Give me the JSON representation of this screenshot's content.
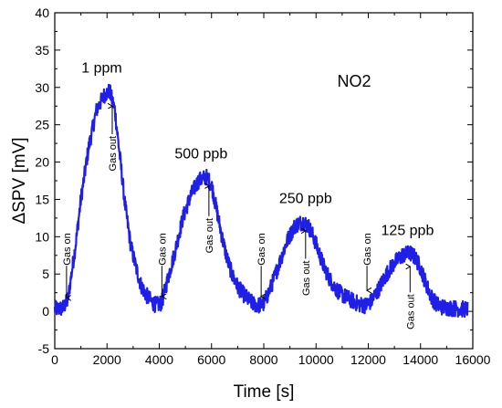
{
  "chart_data": {
    "type": "line",
    "title": "",
    "xlabel": "Time [s]",
    "ylabel": "ΔSPV [mV]",
    "xlim": [
      0,
      16000
    ],
    "ylim": [
      -5,
      40
    ],
    "x_ticks": [
      0,
      2000,
      4000,
      6000,
      8000,
      10000,
      12000,
      14000,
      16000
    ],
    "y_ticks": [
      -5,
      0,
      5,
      10,
      15,
      20,
      25,
      30,
      35,
      40
    ],
    "x_tick_labels": [
      "0",
      "2000",
      "4000",
      "6000",
      "8000",
      "10000",
      "12000",
      "14000",
      "16000"
    ],
    "y_tick_labels": [
      "-5",
      "0",
      "5",
      "10",
      "15",
      "20",
      "25",
      "30",
      "35",
      "40"
    ],
    "grid": false,
    "legend": "none",
    "line_color": "#1f1fe6",
    "series": [
      {
        "x": [
          0,
          300,
          500,
          800,
          1000,
          1300,
          1600,
          1900,
          2100,
          2300,
          2500,
          2700,
          2900,
          3100,
          3300,
          3500,
          3700,
          3900,
          4100,
          4300,
          4600,
          4900,
          5200,
          5500,
          5800,
          6000,
          6200,
          6400,
          6600,
          6800,
          7000,
          7200,
          7400,
          7600,
          7800,
          8000,
          8300,
          8600,
          8900,
          9200,
          9500,
          9700,
          9900,
          10100,
          10300,
          10500,
          10700,
          10900,
          11100,
          11300,
          11500,
          11700,
          11900,
          12100,
          12400,
          12700,
          13000,
          13300,
          13600,
          13800,
          14000,
          14200,
          14400,
          14600,
          14800,
          15000,
          15300,
          15600,
          15800
        ],
        "y": [
          0.3,
          0.4,
          1.5,
          9.0,
          15.0,
          22.0,
          27.0,
          29.0,
          29.5,
          27.0,
          20.5,
          14.0,
          9.0,
          6.0,
          3.5,
          2.2,
          1.3,
          0.8,
          1.2,
          4.0,
          8.0,
          12.5,
          15.5,
          17.5,
          18.0,
          17.0,
          13.5,
          10.0,
          7.0,
          4.8,
          3.3,
          2.4,
          1.6,
          1.0,
          0.8,
          1.0,
          3.5,
          6.5,
          9.5,
          11.5,
          12.0,
          11.5,
          10.0,
          8.0,
          6.0,
          4.5,
          3.3,
          2.5,
          2.0,
          1.6,
          1.2,
          0.9,
          0.8,
          1.3,
          3.0,
          5.0,
          6.5,
          7.5,
          7.8,
          7.2,
          5.8,
          3.8,
          2.0,
          1.0,
          0.6,
          0.5,
          0.4,
          0.3,
          0.3
        ]
      }
    ],
    "annotations": {
      "gas_label": "NO2",
      "concentrations": [
        {
          "text": "1 ppm",
          "x": 1800,
          "y": 32
        },
        {
          "text": "500 ppb",
          "x": 5600,
          "y": 20.5
        },
        {
          "text": "250 ppb",
          "x": 9600,
          "y": 14.5
        },
        {
          "text": "125 ppb",
          "x": 13500,
          "y": 10.2
        }
      ],
      "gas_on": [
        {
          "text": "Gas on",
          "x": 450,
          "y_label_top": 10.5,
          "y_arrow_tip": 1.8
        },
        {
          "text": "Gas on",
          "x": 4100,
          "y_label_top": 10.5,
          "y_arrow_tip": 2.0
        },
        {
          "text": "Gas on",
          "x": 7900,
          "y_label_top": 10.5,
          "y_arrow_tip": 2.0
        },
        {
          "text": "Gas on",
          "x": 11950,
          "y_label_top": 10.5,
          "y_arrow_tip": 2.8
        }
      ],
      "gas_out": [
        {
          "text": "Gas out",
          "x": 2200,
          "y_arrow_tip": 27.5,
          "y_label_top": 23.5
        },
        {
          "text": "Gas out",
          "x": 5900,
          "y_arrow_tip": 16.8,
          "y_label_top": 12.5
        },
        {
          "text": "Gas out",
          "x": 9600,
          "y_arrow_tip": 10.8,
          "y_label_top": 6.8
        },
        {
          "text": "Gas out",
          "x": 13600,
          "y_arrow_tip": 6.0,
          "y_label_top": 2.3
        }
      ]
    }
  }
}
